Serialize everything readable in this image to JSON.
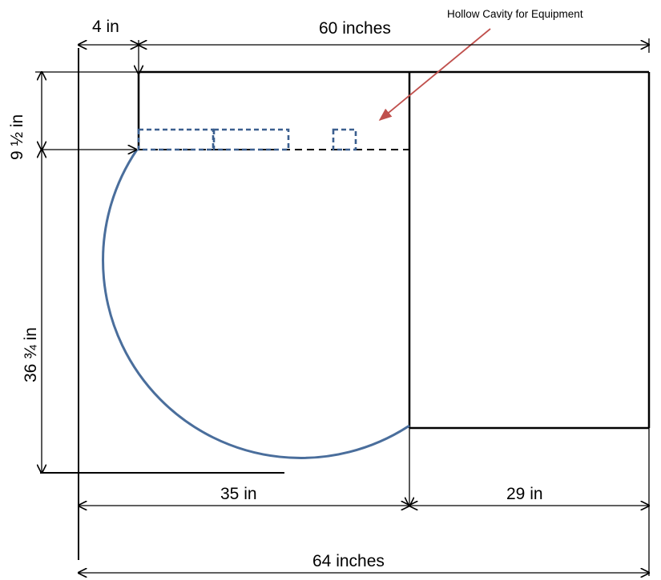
{
  "labels": {
    "top_offset": "4 in",
    "top_width": "60 inches",
    "cavity_callout": "Hollow Cavity for Equipment",
    "left_upper_height": "9 ½ in",
    "left_lower_height": "36 ¾ in",
    "bottom_left_width": "35 in",
    "bottom_right_width": "29 in",
    "bottom_total_width": "64 inches"
  },
  "colors": {
    "outline": "#000000",
    "circle": "#4a6e9c",
    "cavity": "#3b5f8f",
    "callout_arrow": "#c0504d"
  }
}
